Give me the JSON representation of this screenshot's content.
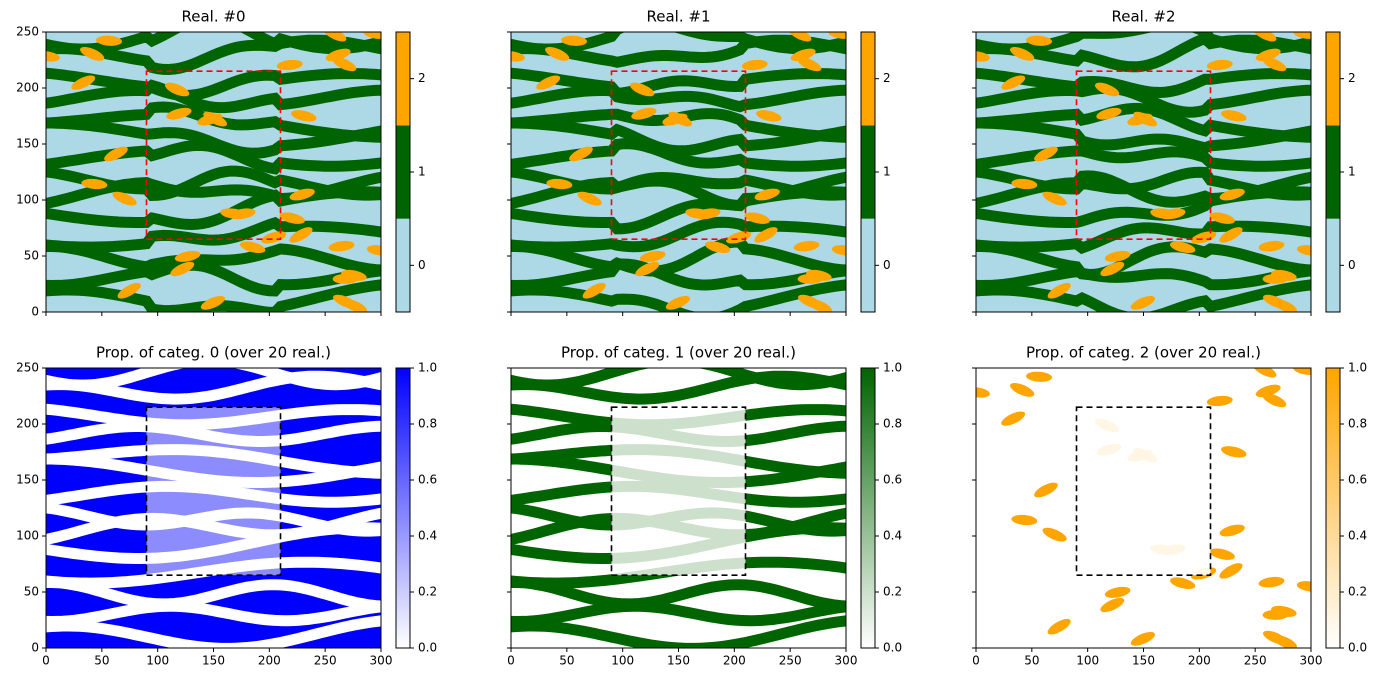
{
  "chart_data": [
    {
      "type": "image",
      "title": "Real. #0",
      "xlim": [
        0,
        300
      ],
      "ylim": [
        0,
        250
      ],
      "xticks": [
        0,
        50,
        100,
        150,
        200,
        250,
        300
      ],
      "yticks": [
        0,
        50,
        100,
        150,
        200,
        250
      ],
      "show_xtick_labels": false,
      "show_ytick_labels": true,
      "box": {
        "x": [
          90,
          210
        ],
        "y": [
          65,
          215
        ],
        "color": "#ff0000"
      },
      "colorbar": {
        "discrete": true,
        "colors": [
          "#add8e6",
          "#006400",
          "#ffa500"
        ],
        "lim": [
          -0.5,
          2.5
        ],
        "ticks": [
          0,
          1,
          2
        ]
      }
    },
    {
      "type": "image",
      "title": "Real. #1",
      "xlim": [
        0,
        300
      ],
      "ylim": [
        0,
        250
      ],
      "xticks": [
        0,
        50,
        100,
        150,
        200,
        250,
        300
      ],
      "yticks": [
        0,
        50,
        100,
        150,
        200,
        250
      ],
      "show_xtick_labels": false,
      "show_ytick_labels": false,
      "box": {
        "x": [
          90,
          210
        ],
        "y": [
          65,
          215
        ],
        "color": "#ff0000"
      },
      "colorbar": {
        "discrete": true,
        "colors": [
          "#add8e6",
          "#006400",
          "#ffa500"
        ],
        "lim": [
          -0.5,
          2.5
        ],
        "ticks": [
          0,
          1,
          2
        ]
      }
    },
    {
      "type": "image",
      "title": "Real. #2",
      "xlim": [
        0,
        300
      ],
      "ylim": [
        0,
        250
      ],
      "xticks": [
        0,
        50,
        100,
        150,
        200,
        250,
        300
      ],
      "yticks": [
        0,
        50,
        100,
        150,
        200,
        250
      ],
      "show_xtick_labels": false,
      "show_ytick_labels": false,
      "box": {
        "x": [
          90,
          210
        ],
        "y": [
          65,
          215
        ],
        "color": "#ff0000"
      },
      "colorbar": {
        "discrete": true,
        "colors": [
          "#add8e6",
          "#006400",
          "#ffa500"
        ],
        "lim": [
          -0.5,
          2.5
        ],
        "ticks": [
          0,
          1,
          2
        ]
      }
    },
    {
      "type": "image",
      "title": "Prop. of categ. 0 (over 20 real.)",
      "xlim": [
        0,
        300
      ],
      "ylim": [
        0,
        250
      ],
      "xticks": [
        0,
        50,
        100,
        150,
        200,
        250,
        300
      ],
      "yticks": [
        0,
        50,
        100,
        150,
        200,
        250
      ],
      "show_xtick_labels": true,
      "show_ytick_labels": true,
      "box": {
        "x": [
          90,
          210
        ],
        "y": [
          65,
          215
        ],
        "color": "#000000"
      },
      "colorbar": {
        "discrete": false,
        "colors": [
          "#ffffff",
          "#0000ff"
        ],
        "lim": [
          0,
          1
        ],
        "ticks": [
          {
            "value": 0,
            "label": "0.0"
          },
          0.2,
          0.4,
          0.6,
          0.8,
          {
            "value": 1,
            "label": "1.0"
          }
        ]
      }
    },
    {
      "type": "image",
      "title": "Prop. of categ. 1 (over 20 real.)",
      "xlim": [
        0,
        300
      ],
      "ylim": [
        0,
        250
      ],
      "xticks": [
        0,
        50,
        100,
        150,
        200,
        250,
        300
      ],
      "yticks": [
        0,
        50,
        100,
        150,
        200,
        250
      ],
      "show_xtick_labels": true,
      "show_ytick_labels": false,
      "box": {
        "x": [
          90,
          210
        ],
        "y": [
          65,
          215
        ],
        "color": "#000000"
      },
      "colorbar": {
        "discrete": false,
        "colors": [
          "#ffffff",
          "#006400"
        ],
        "lim": [
          0,
          1
        ],
        "ticks": [
          {
            "value": 0,
            "label": "0.0"
          },
          0.2,
          0.4,
          0.6,
          0.8,
          {
            "value": 1,
            "label": "1.0"
          }
        ]
      }
    },
    {
      "type": "image",
      "title": "Prop. of categ. 2 (over 20 real.)",
      "xlim": [
        0,
        300
      ],
      "ylim": [
        0,
        250
      ],
      "xticks": [
        0,
        50,
        100,
        150,
        200,
        250,
        300
      ],
      "yticks": [
        0,
        50,
        100,
        150,
        200,
        250
      ],
      "show_xtick_labels": true,
      "show_ytick_labels": false,
      "box": {
        "x": [
          90,
          210
        ],
        "y": [
          65,
          215
        ],
        "color": "#000000"
      },
      "colorbar": {
        "discrete": false,
        "colors": [
          "#ffffff",
          "#ffa500"
        ],
        "lim": [
          0,
          1
        ],
        "ticks": [
          {
            "value": 0,
            "label": "0.0"
          },
          0.2,
          0.4,
          0.6,
          0.8,
          {
            "value": 1,
            "label": "1.0"
          }
        ]
      }
    }
  ]
}
